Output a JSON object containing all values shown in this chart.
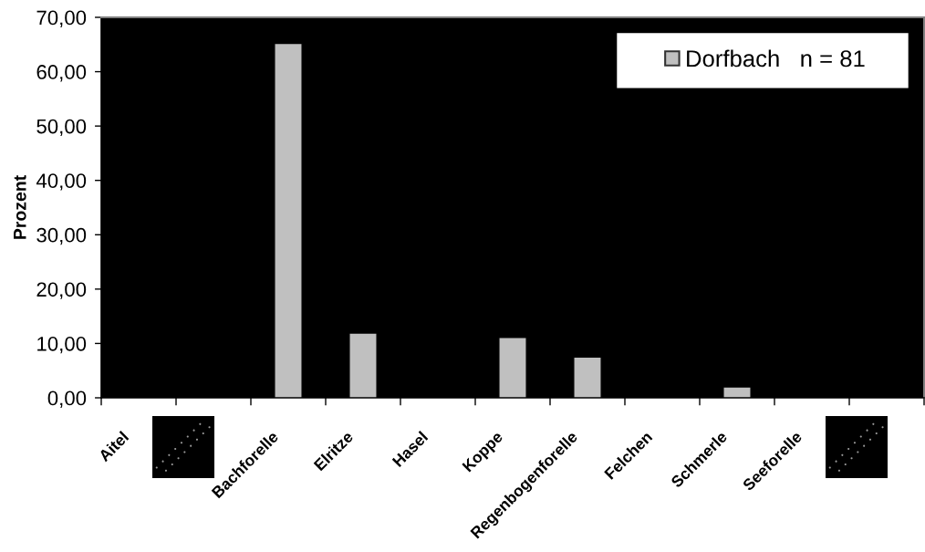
{
  "chart_data": {
    "type": "bar",
    "categories": [
      "Aitel",
      null,
      "Bachforelle",
      "Elritze",
      "Hasel",
      "Koppe",
      "Regenbogenforelle",
      "Felchen",
      "Schmerle",
      "Seeforelle",
      null
    ],
    "series": [
      {
        "name": "Dorfbach   n = 81",
        "color": "#c0c0c0",
        "values": [
          null,
          null,
          65.2,
          11.9,
          null,
          11.1,
          7.5,
          null,
          2,
          null,
          null
        ]
      }
    ],
    "ylabel": "Prozent",
    "ylim": [
      0,
      70
    ],
    "yticks": [
      {
        "value": 0,
        "label": "0,00"
      },
      {
        "value": 10,
        "label": "10,00"
      },
      {
        "value": 20,
        "label": "20,00"
      },
      {
        "value": 30,
        "label": "30,00"
      },
      {
        "value": 40,
        "label": "40,00"
      },
      {
        "value": 50,
        "label": "50,00"
      },
      {
        "value": 60,
        "label": "60,00"
      },
      {
        "value": 70,
        "label": "70,00"
      }
    ],
    "legend": "top right"
  }
}
